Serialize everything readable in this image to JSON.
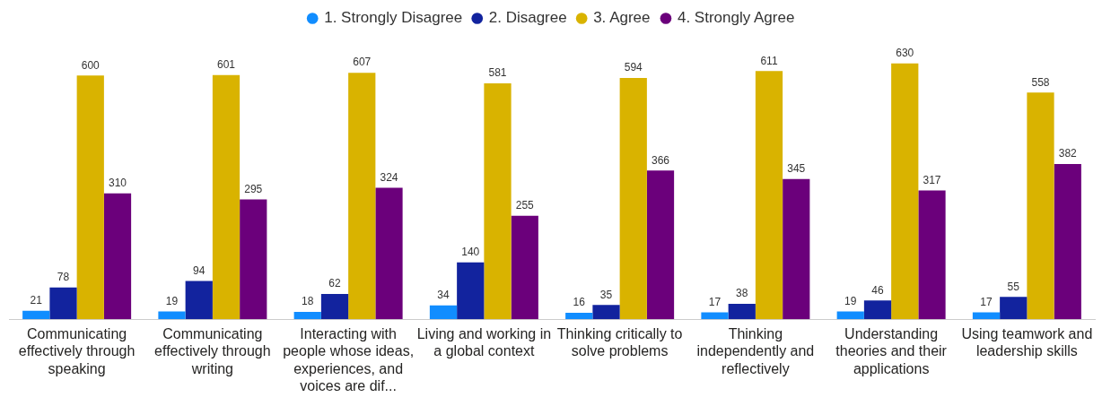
{
  "chart_data": {
    "type": "bar",
    "categories": [
      "Communicating effectively through speaking",
      "Communicating effectively through writing",
      "Interacting with people whose ideas, experiences, and voices are dif...",
      "Living and working in a global context",
      "Thinking critically to solve problems",
      "Thinking independently and reflectively",
      "Understanding theories and their applications",
      "Using teamwork and leadership skills"
    ],
    "series": [
      {
        "name": "1. Strongly Disagree",
        "color": "#118dff",
        "values": [
          21,
          19,
          18,
          34,
          16,
          17,
          19,
          17
        ]
      },
      {
        "name": "2. Disagree",
        "color": "#12239e",
        "values": [
          78,
          94,
          62,
          140,
          35,
          38,
          46,
          55
        ]
      },
      {
        "name": "3. Agree",
        "color": "#d9b300",
        "values": [
          600,
          601,
          607,
          581,
          594,
          611,
          630,
          558
        ]
      },
      {
        "name": "4. Strongly Agree",
        "color": "#6b007b",
        "values": [
          310,
          295,
          324,
          255,
          366,
          345,
          317,
          382
        ]
      }
    ],
    "data_labels": true,
    "legend": "top",
    "grid": false
  }
}
